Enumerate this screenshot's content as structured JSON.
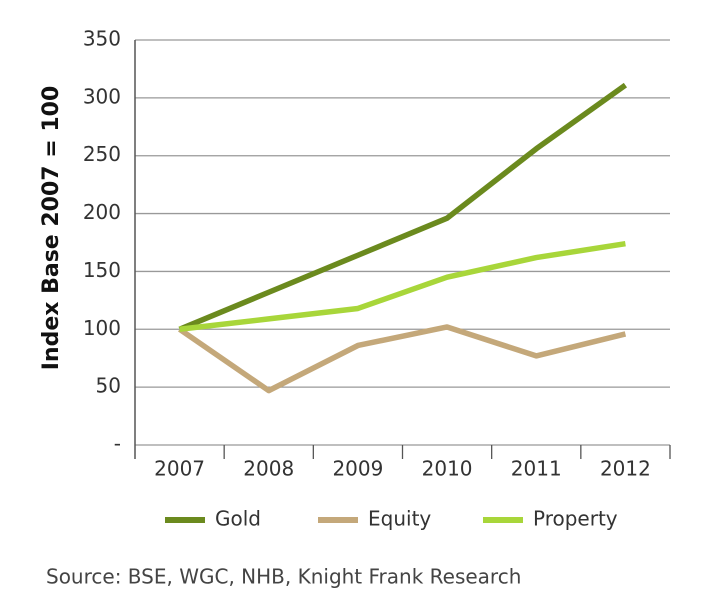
{
  "chart_data": {
    "type": "line",
    "y_label": "Index Base 2007 = 100",
    "categories": [
      "2007",
      "2008",
      "2009",
      "2010",
      "2011",
      "2012"
    ],
    "series": [
      {
        "name": "Gold",
        "color": "#6b8a1e",
        "values": [
          100,
          132,
          164,
          196,
          256,
          311
        ]
      },
      {
        "name": "Equity",
        "color": "#c4a87a",
        "values": [
          100,
          47,
          86,
          102,
          77,
          96
        ]
      },
      {
        "name": "Property",
        "color": "#a8d63a",
        "values": [
          100,
          109,
          118,
          145,
          162,
          174
        ]
      }
    ],
    "ylim": [
      0,
      350
    ],
    "yticks": [
      {
        "value": 0,
        "label": "-"
      },
      50,
      100,
      150,
      200,
      250,
      300,
      350
    ],
    "grid": true,
    "legend": "bottom",
    "source": "Source: BSE, WGC, NHB, Knight Frank Research"
  }
}
